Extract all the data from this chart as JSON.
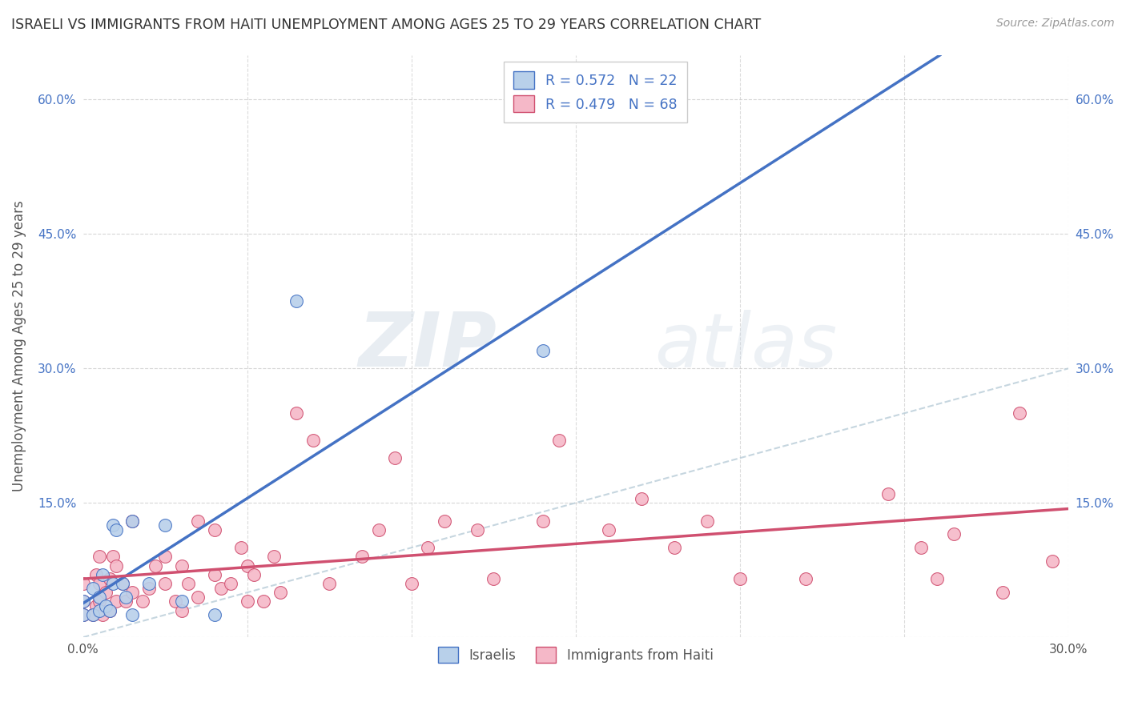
{
  "title": "ISRAELI VS IMMIGRANTS FROM HAITI UNEMPLOYMENT AMONG AGES 25 TO 29 YEARS CORRELATION CHART",
  "source": "Source: ZipAtlas.com",
  "ylabel": "Unemployment Among Ages 25 to 29 years",
  "xlim": [
    0.0,
    0.3
  ],
  "ylim": [
    0.0,
    0.65
  ],
  "xticks": [
    0.0,
    0.05,
    0.1,
    0.15,
    0.2,
    0.25,
    0.3
  ],
  "yticks": [
    0.0,
    0.15,
    0.3,
    0.45,
    0.6
  ],
  "xticklabels": [
    "0.0%",
    "",
    "",
    "",
    "",
    "",
    "30.0%"
  ],
  "yticklabels": [
    "",
    "15.0%",
    "30.0%",
    "45.0%",
    "60.0%"
  ],
  "color_israeli_face": "#b8d0ea",
  "color_israeli_edge": "#4472c4",
  "color_haiti_face": "#f5b8c8",
  "color_haiti_edge": "#d05070",
  "color_line_israeli": "#4472c4",
  "color_line_haiti": "#d05070",
  "color_diagonal": "#b8ccd8",
  "color_grid": "#cccccc",
  "color_title": "#333333",
  "color_source": "#999999",
  "color_ylabel": "#555555",
  "color_legend_text": "#4472c4",
  "color_watermark": "#d0dce8",
  "watermark_zip": "ZIP",
  "watermark_atlas": "atlas",
  "legend_line1": "R = 0.572   N = 22",
  "legend_line2": "R = 0.479   N = 68",
  "israelis_x": [
    0.0,
    0.0,
    0.003,
    0.003,
    0.005,
    0.005,
    0.006,
    0.007,
    0.008,
    0.009,
    0.009,
    0.01,
    0.012,
    0.013,
    0.015,
    0.015,
    0.02,
    0.025,
    0.03,
    0.04,
    0.065,
    0.14
  ],
  "israelis_y": [
    0.025,
    0.04,
    0.025,
    0.055,
    0.03,
    0.045,
    0.07,
    0.035,
    0.03,
    0.06,
    0.125,
    0.12,
    0.06,
    0.045,
    0.025,
    0.13,
    0.06,
    0.125,
    0.04,
    0.025,
    0.375,
    0.32
  ],
  "haiti_x": [
    0.0,
    0.0,
    0.0,
    0.003,
    0.004,
    0.004,
    0.005,
    0.005,
    0.005,
    0.006,
    0.007,
    0.008,
    0.008,
    0.009,
    0.01,
    0.01,
    0.012,
    0.013,
    0.015,
    0.015,
    0.018,
    0.02,
    0.022,
    0.025,
    0.025,
    0.028,
    0.03,
    0.03,
    0.032,
    0.035,
    0.035,
    0.04,
    0.04,
    0.042,
    0.045,
    0.048,
    0.05,
    0.05,
    0.052,
    0.055,
    0.058,
    0.06,
    0.065,
    0.07,
    0.075,
    0.085,
    0.09,
    0.095,
    0.1,
    0.105,
    0.11,
    0.12,
    0.125,
    0.14,
    0.145,
    0.16,
    0.17,
    0.18,
    0.19,
    0.2,
    0.22,
    0.245,
    0.255,
    0.26,
    0.265,
    0.28,
    0.285,
    0.295
  ],
  "haiti_y": [
    0.025,
    0.04,
    0.06,
    0.025,
    0.035,
    0.07,
    0.04,
    0.06,
    0.09,
    0.025,
    0.05,
    0.03,
    0.065,
    0.09,
    0.04,
    0.08,
    0.06,
    0.04,
    0.05,
    0.13,
    0.04,
    0.055,
    0.08,
    0.06,
    0.09,
    0.04,
    0.03,
    0.08,
    0.06,
    0.045,
    0.13,
    0.07,
    0.12,
    0.055,
    0.06,
    0.1,
    0.04,
    0.08,
    0.07,
    0.04,
    0.09,
    0.05,
    0.25,
    0.22,
    0.06,
    0.09,
    0.12,
    0.2,
    0.06,
    0.1,
    0.13,
    0.12,
    0.065,
    0.13,
    0.22,
    0.12,
    0.155,
    0.1,
    0.13,
    0.065,
    0.065,
    0.16,
    0.1,
    0.065,
    0.115,
    0.05,
    0.25,
    0.085
  ]
}
